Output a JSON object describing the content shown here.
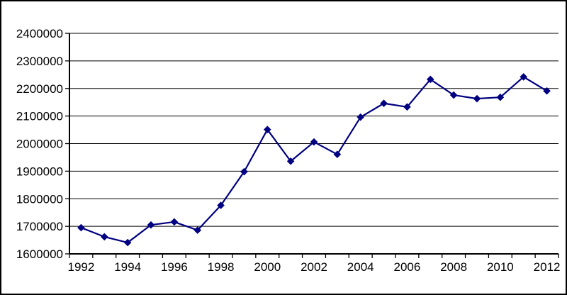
{
  "window": {
    "background": "#ffffff",
    "frame_border_color": "#000000"
  },
  "chart_data": {
    "type": "line",
    "title": "",
    "xlabel": "",
    "ylabel": "",
    "x": [
      1992,
      1993,
      1994,
      1995,
      1996,
      1997,
      1998,
      1999,
      2000,
      2001,
      2002,
      2003,
      2004,
      2005,
      2006,
      2007,
      2008,
      2009,
      2010,
      2011,
      2012
    ],
    "series": [
      {
        "name": "",
        "values": [
          1695000,
          1662000,
          1641000,
          1705000,
          1716000,
          1686000,
          1776000,
          1898000,
          2051000,
          1936000,
          2006000,
          1961000,
          2096000,
          2146000,
          2133000,
          2233000,
          2176000,
          2163000,
          2168000,
          2242000,
          2191000
        ]
      }
    ],
    "ylim": [
      1600000,
      2400000
    ],
    "ytick_step": 100000,
    "ytick_labels": [
      "1600000",
      "1700000",
      "1800000",
      "1900000",
      "2000000",
      "2100000",
      "2200000",
      "2300000",
      "2400000"
    ],
    "xtick_labels": [
      "1992",
      "1994",
      "1996",
      "1998",
      "2000",
      "2002",
      "2004",
      "2006",
      "2008",
      "2010",
      "2012"
    ],
    "grid": true,
    "legend": false,
    "marker": "diamond",
    "line_color": "#000080",
    "marker_color": "#000080",
    "grid_color": "#000000",
    "axis_color": "#000000",
    "text_color": "#000000"
  }
}
